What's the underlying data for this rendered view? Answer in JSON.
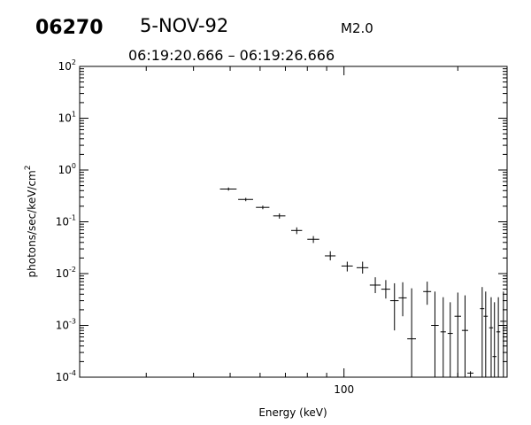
{
  "header": {
    "event_id": "06270",
    "date": "5-NOV-92",
    "goes_class": "M2.0",
    "time_range": "06:19:20.666  –  06:19:26.666"
  },
  "chart_data": {
    "type": "scatter",
    "style": "error-bars",
    "xlabel": "Energy (keV)",
    "ylabel_base": "photons/sec/keV/cm",
    "ylabel_sup": "2",
    "xscale": "log",
    "yscale": "log",
    "xlim": [
      20,
      270
    ],
    "ylim": [
      0.0001,
      100
    ],
    "x_tick_labels": [
      {
        "value": 100,
        "label": "100"
      }
    ],
    "y_tick_labels": [
      {
        "value": 100,
        "base": "10",
        "exp": "2"
      },
      {
        "value": 10,
        "base": "10",
        "exp": "1"
      },
      {
        "value": 1,
        "base": "10",
        "exp": "0"
      },
      {
        "value": 0.1,
        "base": "10",
        "exp": "-1"
      },
      {
        "value": 0.01,
        "base": "10",
        "exp": "-2"
      },
      {
        "value": 0.001,
        "base": "10",
        "exp": "-3"
      },
      {
        "value": 0.0001,
        "base": "10",
        "exp": "-4"
      }
    ],
    "points": [
      {
        "x": 49.5,
        "xlo": 47.0,
        "xhi": 52.0,
        "y": 0.43,
        "ylo": 0.4,
        "yhi": 0.46
      },
      {
        "x": 55.0,
        "xlo": 52.5,
        "xhi": 57.5,
        "y": 0.27,
        "ylo": 0.25,
        "yhi": 0.29
      },
      {
        "x": 61.0,
        "xlo": 58.5,
        "xhi": 63.5,
        "y": 0.19,
        "ylo": 0.175,
        "yhi": 0.205
      },
      {
        "x": 67.5,
        "xlo": 65.0,
        "xhi": 70.0,
        "y": 0.13,
        "ylo": 0.115,
        "yhi": 0.145
      },
      {
        "x": 75.0,
        "xlo": 72.5,
        "xhi": 77.5,
        "y": 0.068,
        "ylo": 0.058,
        "yhi": 0.078
      },
      {
        "x": 83.0,
        "xlo": 80.0,
        "xhi": 86.0,
        "y": 0.046,
        "ylo": 0.039,
        "yhi": 0.053
      },
      {
        "x": 92.0,
        "xlo": 89.0,
        "xhi": 95.0,
        "y": 0.022,
        "ylo": 0.018,
        "yhi": 0.027
      },
      {
        "x": 102.0,
        "xlo": 98.5,
        "xhi": 105.5,
        "y": 0.014,
        "ylo": 0.011,
        "yhi": 0.017
      },
      {
        "x": 112.0,
        "xlo": 108.0,
        "xhi": 116.0,
        "y": 0.013,
        "ylo": 0.01,
        "yhi": 0.017
      },
      {
        "x": 121.0,
        "xlo": 117.0,
        "xhi": 125.0,
        "y": 0.006,
        "ylo": 0.0042,
        "yhi": 0.0085
      },
      {
        "x": 129.0,
        "xlo": 125.5,
        "xhi": 132.5,
        "y": 0.005,
        "ylo": 0.0033,
        "yhi": 0.0075
      },
      {
        "x": 136.0,
        "xlo": 132.5,
        "xhi": 139.5,
        "y": 0.003,
        "ylo": 0.0008,
        "yhi": 0.0065
      },
      {
        "x": 143.0,
        "xlo": 139.5,
        "xhi": 146.5,
        "y": 0.0034,
        "ylo": 0.0015,
        "yhi": 0.0068
      },
      {
        "x": 151.0,
        "xlo": 147.0,
        "xhi": 155.0,
        "y": 0.00055,
        "ylo": 0.0001,
        "yhi": 0.0052
      },
      {
        "x": 166.0,
        "xlo": 162.0,
        "xhi": 170.0,
        "y": 0.0045,
        "ylo": 0.0025,
        "yhi": 0.007
      },
      {
        "x": 174.0,
        "xlo": 170.0,
        "xhi": 178.0,
        "y": 0.001,
        "ylo": 0.0001,
        "yhi": 0.0045
      },
      {
        "x": 183.0,
        "xlo": 180.0,
        "xhi": 186.0,
        "y": 0.00075,
        "ylo": 0.0001,
        "yhi": 0.0035
      },
      {
        "x": 191.0,
        "xlo": 188.0,
        "xhi": 194.0,
        "y": 0.0007,
        "ylo": 0.0001,
        "yhi": 0.0028
      },
      {
        "x": 200.0,
        "xlo": 196.0,
        "xhi": 204.0,
        "y": 0.0015,
        "ylo": 0.0001,
        "yhi": 0.0043
      },
      {
        "x": 209.0,
        "xlo": 205.0,
        "xhi": 213.0,
        "y": 0.0008,
        "ylo": 0.0001,
        "yhi": 0.0038
      },
      {
        "x": 216.0,
        "xlo": 212.0,
        "xhi": 220.0,
        "y": 0.00012,
        "ylo": 0.0001,
        "yhi": 0.00013
      },
      {
        "x": 232.0,
        "xlo": 229.0,
        "xhi": 235.0,
        "y": 0.0021,
        "ylo": 0.0001,
        "yhi": 0.0055
      },
      {
        "x": 237.0,
        "xlo": 234.0,
        "xhi": 240.0,
        "y": 0.0015,
        "ylo": 0.0001,
        "yhi": 0.0045
      },
      {
        "x": 245.0,
        "xlo": 242.0,
        "xhi": 248.0,
        "y": 0.0009,
        "ylo": 0.0001,
        "yhi": 0.0035
      },
      {
        "x": 250.0,
        "xlo": 247.0,
        "xhi": 253.0,
        "y": 0.00025,
        "ylo": 0.0001,
        "yhi": 0.0028
      },
      {
        "x": 256.0,
        "xlo": 253.0,
        "xhi": 259.0,
        "y": 0.00075,
        "ylo": 0.0001,
        "yhi": 0.0035
      },
      {
        "x": 264.0,
        "xlo": 259.0,
        "xhi": 269.0,
        "y": 0.0012,
        "ylo": 0.0001,
        "yhi": 0.0045
      }
    ]
  }
}
